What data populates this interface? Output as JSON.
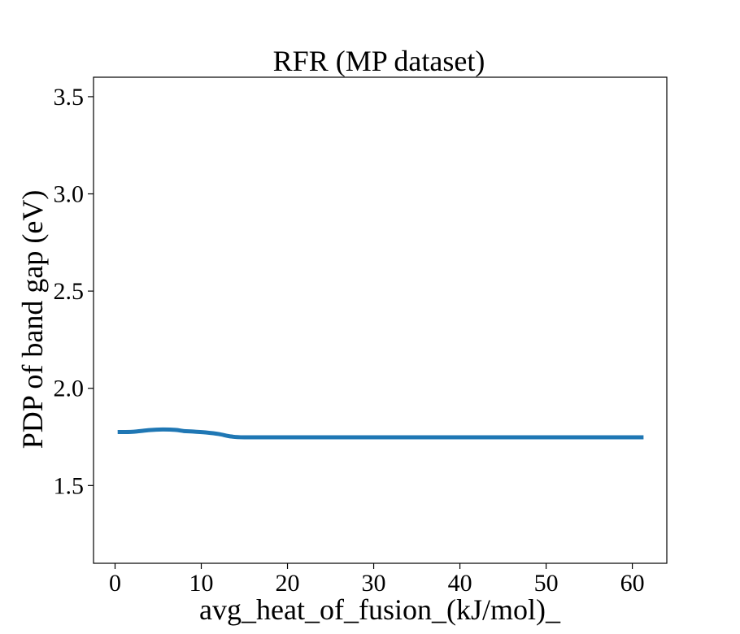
{
  "chart_data": {
    "type": "line",
    "title": "RFR (MP dataset)",
    "xlabel": "avg_heat_of_fusion_(kJ/mol)_",
    "ylabel": "PDP of band gap (eV)",
    "xlim": [
      -2.5,
      64.0
    ],
    "ylim": [
      1.1,
      3.6
    ],
    "xticks": [
      0,
      10,
      20,
      30,
      40,
      50,
      60
    ],
    "xtick_labels": [
      "0",
      "10",
      "20",
      "30",
      "40",
      "50",
      "60"
    ],
    "yticks": [
      1.5,
      2.0,
      2.5,
      3.0,
      3.5
    ],
    "ytick_labels": [
      "1.5",
      "2.0",
      "2.5",
      "3.0",
      "3.5"
    ],
    "grid": false,
    "series": [
      {
        "color": "#1f77b4",
        "x": [
          0.3,
          2.0,
          4.0,
          5.5,
          7.0,
          8.0,
          9.0,
          10.5,
          12.0,
          13.5,
          15.0,
          20.0,
          30.0,
          40.0,
          50.0,
          61.3
        ],
        "y": [
          1.775,
          1.776,
          1.785,
          1.788,
          1.786,
          1.78,
          1.778,
          1.773,
          1.765,
          1.752,
          1.748,
          1.748,
          1.748,
          1.748,
          1.748,
          1.748
        ]
      }
    ]
  }
}
